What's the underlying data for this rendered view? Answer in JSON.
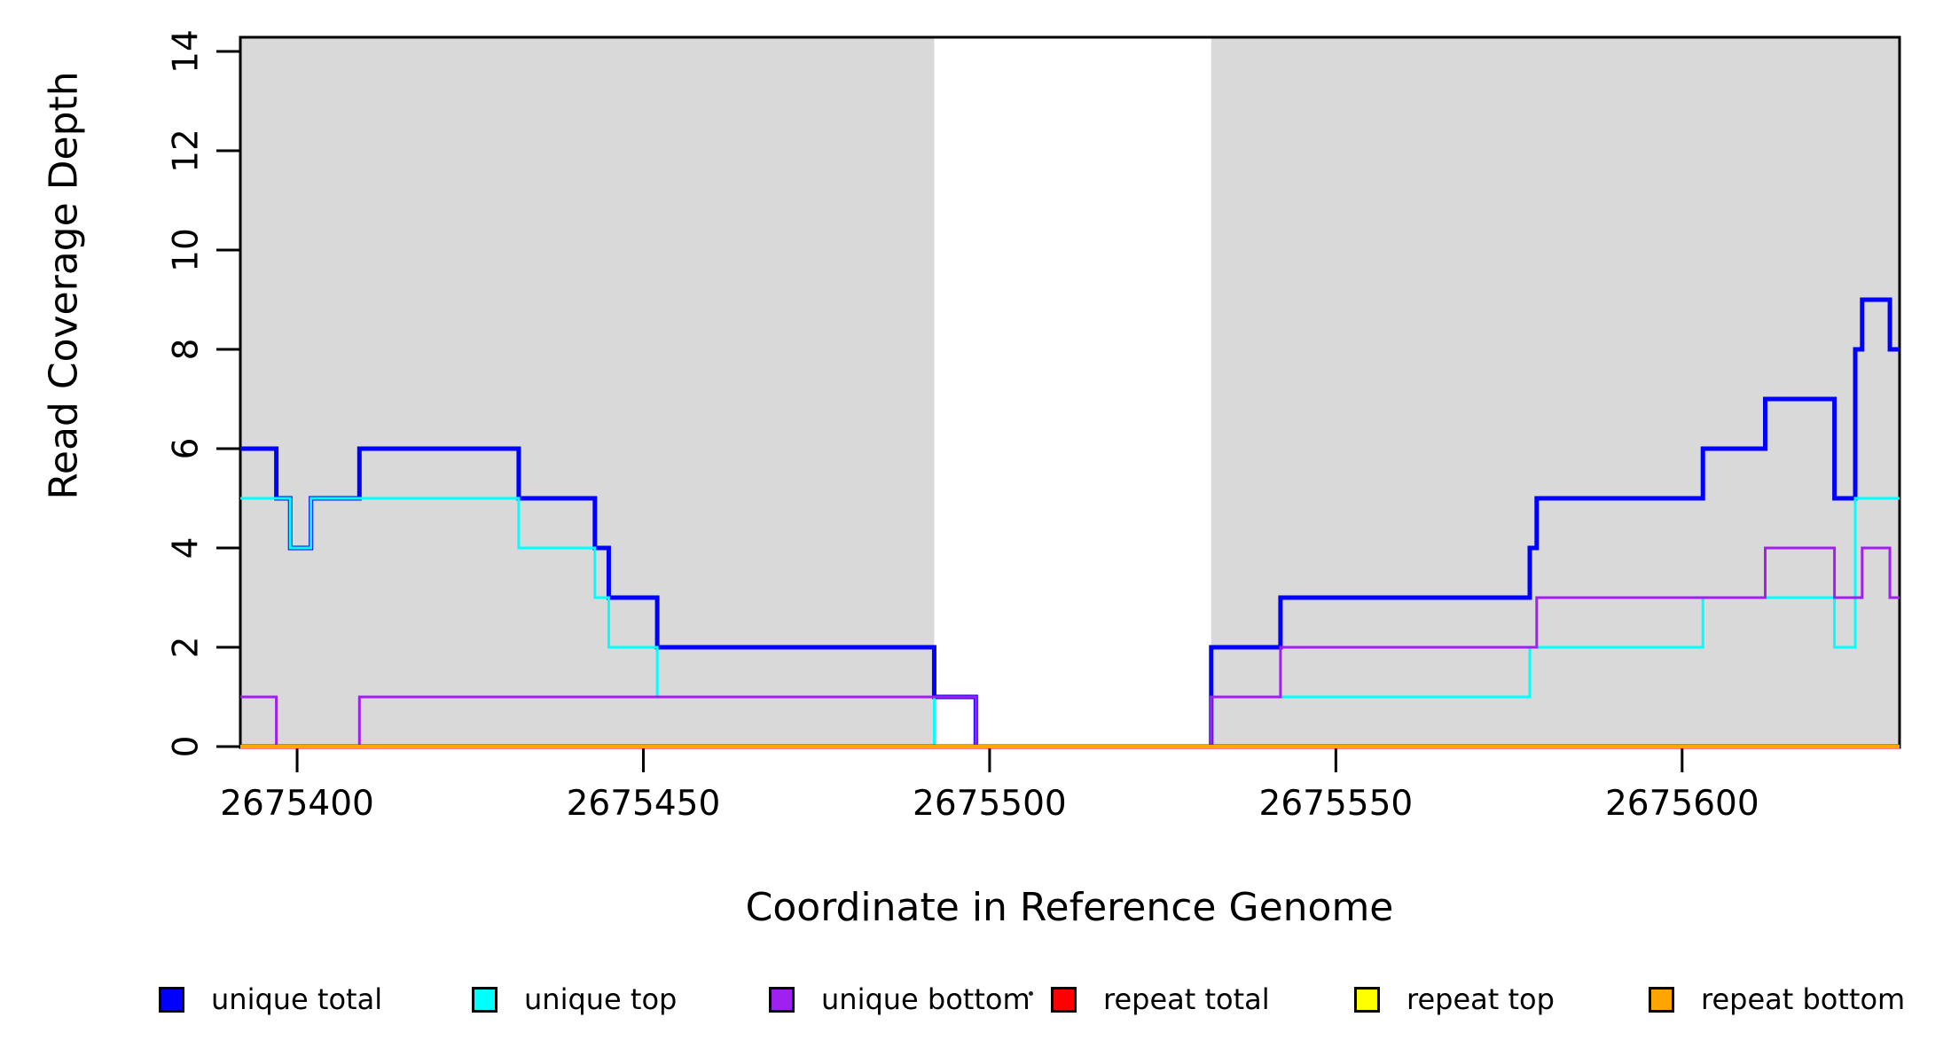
{
  "figure": {
    "xlabel": "Coordinate in Reference Genome",
    "ylabel": "Read Coverage Depth"
  },
  "chart_data": {
    "type": "line",
    "subtype": "step-coverage",
    "title": "",
    "xlabel": "Coordinate in Reference Genome",
    "ylabel": "Read Coverage Depth",
    "xlim": [
      2675391.8,
      2675631.4
    ],
    "ylim": [
      0,
      14.35
    ],
    "x_ticks": [
      2675400,
      2675450,
      2675500,
      2675550,
      2675600
    ],
    "y_ticks": [
      0,
      2,
      4,
      6,
      8,
      10,
      12,
      14
    ],
    "grid": false,
    "legend_position": "bottom",
    "background_color": "#ffffff",
    "shaded_region_color": "#D9D9D9",
    "shaded_regions": [
      [
        2675391.8,
        2675492
      ],
      [
        2675532,
        2675631.4
      ]
    ],
    "series": [
      {
        "name": "unique total",
        "color": "#0000FF",
        "lwd": 5,
        "steps": [
          [
            2675392,
            6
          ],
          [
            2675397,
            5
          ],
          [
            2675399,
            4
          ],
          [
            2675402,
            5
          ],
          [
            2675409,
            6
          ],
          [
            2675432,
            5
          ],
          [
            2675443,
            4
          ],
          [
            2675445,
            3
          ],
          [
            2675452,
            2
          ],
          [
            2675492,
            1
          ],
          [
            2675498,
            0
          ],
          [
            2675532,
            2
          ],
          [
            2675542,
            3
          ],
          [
            2675578,
            4
          ],
          [
            2675579,
            5
          ],
          [
            2675603,
            6
          ],
          [
            2675612,
            7
          ],
          [
            2675622,
            5
          ],
          [
            2675625,
            8
          ],
          [
            2675626,
            9
          ],
          [
            2675630,
            8
          ]
        ]
      },
      {
        "name": "unique top",
        "color": "#00FFFF",
        "lwd": 3,
        "steps": [
          [
            2675392,
            5
          ],
          [
            2675399,
            4
          ],
          [
            2675402,
            5
          ],
          [
            2675432,
            4
          ],
          [
            2675443,
            3
          ],
          [
            2675445,
            2
          ],
          [
            2675452,
            1
          ],
          [
            2675492,
            0
          ],
          [
            2675532,
            1
          ],
          [
            2675578,
            2
          ],
          [
            2675603,
            3
          ],
          [
            2675622,
            2
          ],
          [
            2675625,
            5
          ]
        ]
      },
      {
        "name": "unique bottom",
        "color": "#A020F0",
        "lwd": 3,
        "steps": [
          [
            2675392,
            1
          ],
          [
            2675397,
            0
          ],
          [
            2675409,
            1
          ],
          [
            2675498,
            0
          ],
          [
            2675532,
            1
          ],
          [
            2675542,
            2
          ],
          [
            2675579,
            3
          ],
          [
            2675612,
            4
          ],
          [
            2675622,
            3
          ],
          [
            2675626,
            4
          ],
          [
            2675630,
            3
          ]
        ]
      },
      {
        "name": "repeat total",
        "color": "#FF0000",
        "lwd": 5,
        "steps": [
          [
            2675392,
            0
          ]
        ]
      },
      {
        "name": "repeat top",
        "color": "#FFFF00",
        "lwd": 4,
        "steps": [
          [
            2675392,
            0
          ]
        ]
      },
      {
        "name": "repeat bottom",
        "color": "#FFA500",
        "lwd": 4,
        "steps": [
          [
            2675392,
            0
          ]
        ]
      }
    ],
    "legend": [
      {
        "label": "unique total",
        "color": "#0000FF"
      },
      {
        "label": "unique top",
        "color": "#00FFFF"
      },
      {
        "label": "unique bottom",
        "color": "#A020F0"
      },
      {
        "label": "repeat total",
        "color": "#FF0000"
      },
      {
        "label": "repeat top",
        "color": "#FFFF00"
      },
      {
        "label": "repeat bottom",
        "color": "#FFA500"
      }
    ]
  }
}
